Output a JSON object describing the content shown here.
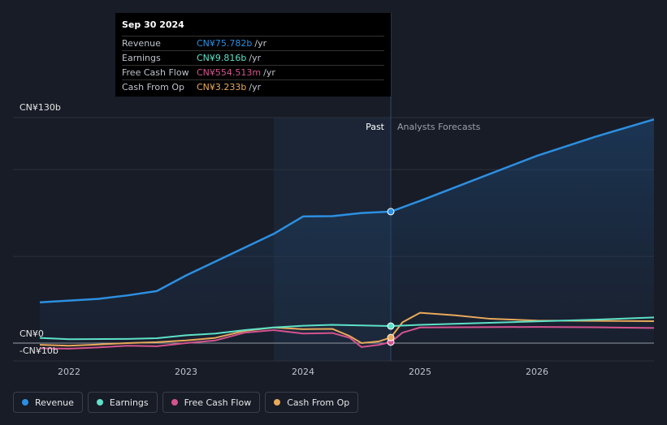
{
  "chart_data": {
    "type": "line",
    "ylabel_top": "CN¥130b",
    "ylabel_zero": "CN¥0",
    "ylabel_bottom": "-CN¥10b",
    "ylim": [
      -10,
      130
    ],
    "xlim": [
      2021.75,
      2027.0
    ],
    "x_ticks": [
      {
        "value": 2022,
        "label": "2022"
      },
      {
        "value": 2023,
        "label": "2023"
      },
      {
        "value": 2024,
        "label": "2024"
      },
      {
        "value": 2025,
        "label": "2025"
      },
      {
        "value": 2026,
        "label": "2026"
      }
    ],
    "past_label": "Past",
    "forecast_label": "Analysts Forecasts",
    "divider_x": 2024.75,
    "highlight_start_x": 2023.75,
    "grid": true,
    "legend_position": "bottom-left",
    "series": [
      {
        "name": "Revenue",
        "color": "#2d8fe0",
        "area": true,
        "points": [
          [
            2021.75,
            23.5
          ],
          [
            2022.0,
            24.5
          ],
          [
            2022.25,
            25.5
          ],
          [
            2022.5,
            27.5
          ],
          [
            2022.75,
            30
          ],
          [
            2023.0,
            39
          ],
          [
            2023.25,
            47
          ],
          [
            2023.5,
            55
          ],
          [
            2023.75,
            63
          ],
          [
            2024.0,
            73
          ],
          [
            2024.25,
            73.2
          ],
          [
            2024.5,
            75
          ],
          [
            2024.75,
            75.8
          ],
          [
            2025.0,
            82
          ],
          [
            2025.5,
            95
          ],
          [
            2026.0,
            108
          ],
          [
            2026.5,
            119
          ],
          [
            2027.0,
            129
          ]
        ]
      },
      {
        "name": "Earnings",
        "color": "#5ee1c8",
        "points": [
          [
            2021.75,
            3
          ],
          [
            2022.0,
            2.2
          ],
          [
            2022.5,
            2.4
          ],
          [
            2022.75,
            2.8
          ],
          [
            2023.0,
            4.5
          ],
          [
            2023.25,
            5.5
          ],
          [
            2023.5,
            7.5
          ],
          [
            2023.75,
            9
          ],
          [
            2024.0,
            10
          ],
          [
            2024.25,
            10.5
          ],
          [
            2024.5,
            10.2
          ],
          [
            2024.75,
            9.8
          ],
          [
            2025.0,
            10.5
          ],
          [
            2025.5,
            11.5
          ],
          [
            2026.0,
            12.5
          ],
          [
            2026.5,
            13.5
          ],
          [
            2027.0,
            14.8
          ]
        ]
      },
      {
        "name": "Free Cash Flow",
        "color": "#d45390",
        "points": [
          [
            2021.75,
            -3
          ],
          [
            2022.0,
            -3.2
          ],
          [
            2022.25,
            -2.5
          ],
          [
            2022.5,
            -1.5
          ],
          [
            2022.75,
            -1.8
          ],
          [
            2023.0,
            0
          ],
          [
            2023.25,
            1.5
          ],
          [
            2023.5,
            6
          ],
          [
            2023.75,
            7.5
          ],
          [
            2024.0,
            5.5
          ],
          [
            2024.25,
            5.8
          ],
          [
            2024.4,
            3
          ],
          [
            2024.5,
            -2.3
          ],
          [
            2024.65,
            -1
          ],
          [
            2024.75,
            0.55
          ],
          [
            2024.85,
            6
          ],
          [
            2025.0,
            9
          ],
          [
            2025.5,
            9.2
          ],
          [
            2026.0,
            9.3
          ],
          [
            2026.5,
            9.1
          ],
          [
            2027.0,
            8.7
          ]
        ]
      },
      {
        "name": "Cash From Op",
        "color": "#e8a95b",
        "points": [
          [
            2021.75,
            -1
          ],
          [
            2022.0,
            -1.5
          ],
          [
            2022.25,
            -0.8
          ],
          [
            2022.5,
            0
          ],
          [
            2022.75,
            0.5
          ],
          [
            2023.0,
            1.5
          ],
          [
            2023.25,
            3
          ],
          [
            2023.5,
            7
          ],
          [
            2023.75,
            9
          ],
          [
            2024.0,
            8
          ],
          [
            2024.25,
            8.2
          ],
          [
            2024.4,
            4
          ],
          [
            2024.5,
            0
          ],
          [
            2024.65,
            1
          ],
          [
            2024.75,
            3.2
          ],
          [
            2024.85,
            12
          ],
          [
            2025.0,
            17.5
          ],
          [
            2025.3,
            16
          ],
          [
            2025.6,
            14
          ],
          [
            2026.0,
            13
          ],
          [
            2026.5,
            12.8
          ],
          [
            2027.0,
            12.6
          ]
        ]
      }
    ]
  },
  "tooltip": {
    "date": "Sep 30 2024",
    "rows": [
      {
        "label": "Revenue",
        "value": "CN¥75.782b",
        "unit": "/yr",
        "color": "#2d8fe0"
      },
      {
        "label": "Earnings",
        "value": "CN¥9.816b",
        "unit": "/yr",
        "color": "#5ee1c8"
      },
      {
        "label": "Free Cash Flow",
        "value": "CN¥554.513m",
        "unit": "/yr",
        "color": "#d45390"
      },
      {
        "label": "Cash From Op",
        "value": "CN¥3.233b",
        "unit": "/yr",
        "color": "#e8a95b"
      }
    ]
  },
  "legend": [
    {
      "label": "Revenue",
      "color": "#2d8fe0"
    },
    {
      "label": "Earnings",
      "color": "#5ee1c8"
    },
    {
      "label": "Free Cash Flow",
      "color": "#d45390"
    },
    {
      "label": "Cash From Op",
      "color": "#e8a95b"
    }
  ]
}
